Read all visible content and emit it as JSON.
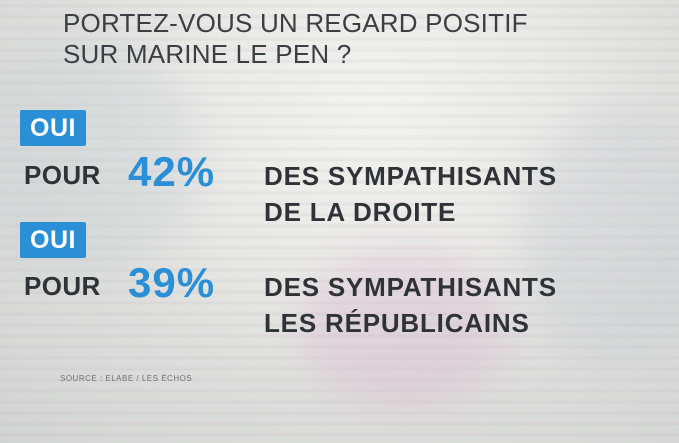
{
  "question": {
    "line1": "PORTEZ-VOUS UN REGARD POSITIF",
    "line2": "SUR MARINE LE PEN ?"
  },
  "results": [
    {
      "badge": "OUI",
      "pour": "POUR",
      "percent": "42%",
      "desc_line1": "DES SYMPATHISANTS",
      "desc_line2": "DE LA DROITE"
    },
    {
      "badge": "OUI",
      "pour": "POUR",
      "percent": "39%",
      "desc_line1": "DES SYMPATHISANTS",
      "desc_line2": "LES RÉPUBLICAINS"
    }
  ],
  "source": "SOURCE : ELABE / LES ÉCHOS",
  "colors": {
    "accent": "#2a8fd6",
    "text": "#2f3338"
  }
}
